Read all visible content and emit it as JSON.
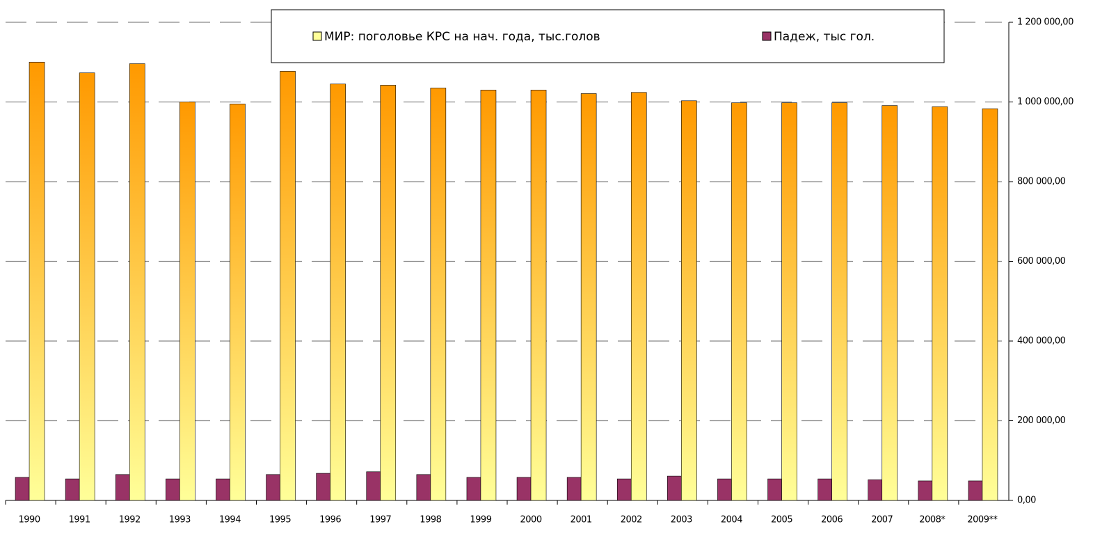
{
  "chart_data": {
    "type": "bar",
    "categories": [
      "1990",
      "1991",
      "1992",
      "1993",
      "1994",
      "1995",
      "1996",
      "1997",
      "1998",
      "1999",
      "2000",
      "2001",
      "2002",
      "2003",
      "2004",
      "2005",
      "2006",
      "2007",
      "2008*",
      "2009**"
    ],
    "series": [
      {
        "name": "Падеж, тыс гол.",
        "color": "#993366",
        "values": [
          58000,
          54000,
          65000,
          54000,
          54000,
          65000,
          68000,
          72000,
          65000,
          58000,
          58000,
          58000,
          54000,
          61000,
          54000,
          54000,
          54000,
          52000,
          49000,
          49000
        ]
      },
      {
        "name": "МИР: поголовье КРС на нач. года, тыс.голов",
        "color": "#ff9900",
        "values": [
          1100000,
          1073000,
          1096000,
          1000000,
          995000,
          1077000,
          1045000,
          1042000,
          1035000,
          1030000,
          1030000,
          1021000,
          1024000,
          1003000,
          998000,
          998000,
          998000,
          991000,
          988000,
          983000
        ]
      }
    ],
    "ylim": [
      0,
      1200000
    ],
    "yticks": [
      {
        "value": 0,
        "label": "0,00"
      },
      {
        "value": 200000,
        "label": "200 000,00"
      },
      {
        "value": 400000,
        "label": "400 000,00"
      },
      {
        "value": 600000,
        "label": "600 000,00"
      },
      {
        "value": 800000,
        "label": "800 000,00"
      },
      {
        "value": 1000000,
        "label": "1 000 000,00"
      },
      {
        "value": 1200000,
        "label": "1 200 000,00"
      }
    ],
    "grid": true
  }
}
